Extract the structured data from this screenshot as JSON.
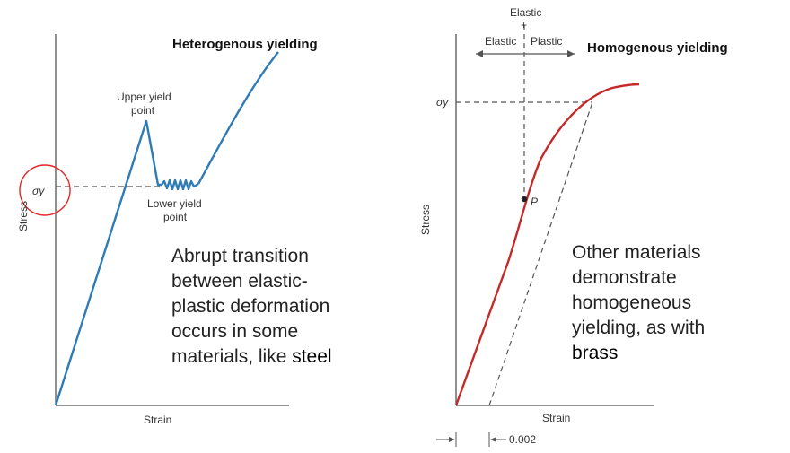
{
  "left_diagram": {
    "title": "Heterogenous yielding",
    "ylabel": "Stress",
    "xlabel": "Strain",
    "sigma_y": "σy",
    "upper_yield": [
      "Upper yield",
      "point"
    ],
    "lower_yield": [
      "Lower yield",
      "point"
    ],
    "description_lines": [
      "Abrupt transition",
      "between elastic-",
      "plastic deformation",
      "occurs in some",
      "materials, like "
    ],
    "description_highlight": "steel",
    "colors": {
      "curve": "#2f7bb5",
      "circle": "#e32626",
      "axes": "#555555"
    }
  },
  "right_diagram": {
    "title": "Homogenous yielding",
    "ylabel": "Stress",
    "xlabel": "Strain",
    "sigma_y": "σy",
    "point_label": "P",
    "elastic_plastic_top": [
      "Elastic",
      "+"
    ],
    "elastic_label": "Elastic",
    "plastic_label": "Plastic",
    "offset_label": "0.002",
    "description_lines": [
      "Other materials",
      "demonstrate",
      "homogeneous",
      "yielding, as with"
    ],
    "description_highlight": "brass",
    "colors": {
      "curve": "#c42a2a",
      "axes": "#555555"
    }
  }
}
